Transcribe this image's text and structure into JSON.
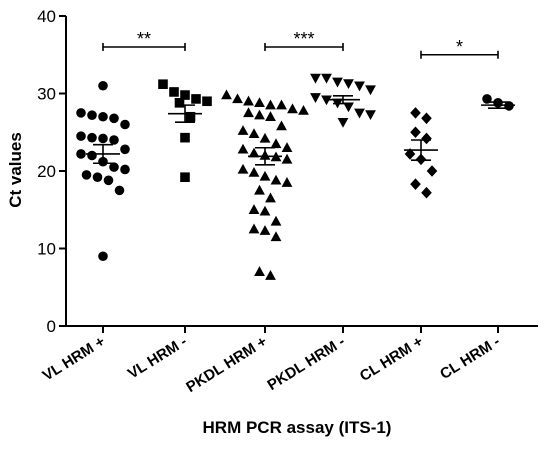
{
  "chart_data": {
    "type": "scatter",
    "title": "",
    "xlabel": "HRM PCR assay (ITS-1)",
    "ylabel": "Ct values",
    "ylim": [
      0,
      40
    ],
    "yticks": [
      0,
      10,
      20,
      30,
      40
    ],
    "grid": false,
    "categories": [
      "VL HRM +",
      "VL HRM -",
      "PKDL HRM +",
      "PKDL HRM -",
      "CL HRM +",
      "CL HRM -"
    ],
    "groups": [
      {
        "category": "VL HRM +",
        "marker": "circle",
        "mean": 22.2,
        "sem_low": 21.0,
        "sem_high": 23.4,
        "points": [
          31.0,
          27.5,
          27.2,
          27.0,
          26.8,
          26.0,
          24.5,
          24.3,
          24.2,
          24.0,
          22.8,
          22.2,
          22.0,
          21.2,
          20.5,
          20.2,
          19.5,
          19.2,
          18.8,
          17.5,
          9.0
        ]
      },
      {
        "category": "VL HRM -",
        "marker": "square",
        "mean": 27.4,
        "sem_low": 26.3,
        "sem_high": 28.5,
        "points": [
          31.2,
          30.2,
          29.8,
          29.3,
          29.0,
          28.8,
          27.0,
          24.3,
          19.2
        ]
      },
      {
        "category": "PKDL HRM +",
        "marker": "triangle-up",
        "mean": 21.9,
        "sem_low": 20.8,
        "sem_high": 23.0,
        "points": [
          29.8,
          29.3,
          29.0,
          28.8,
          28.5,
          28.5,
          28.0,
          27.8,
          27.5,
          27.2,
          27.0,
          25.8,
          25.2,
          24.8,
          24.2,
          23.5,
          23.0,
          22.8,
          22.3,
          22.0,
          21.8,
          21.5,
          20.2,
          19.8,
          19.3,
          18.8,
          18.5,
          17.5,
          16.5,
          15.0,
          14.8,
          13.5,
          12.5,
          12.3,
          11.5,
          7.0,
          6.5
        ]
      },
      {
        "category": "PKDL HRM -",
        "marker": "triangle-down",
        "mean": 29.2,
        "sem_low": 28.7,
        "sem_high": 29.7,
        "points": [
          32.0,
          32.0,
          31.5,
          31.3,
          31.0,
          30.5,
          29.5,
          29.2,
          28.8,
          28.3,
          27.5,
          27.3,
          26.3
        ]
      },
      {
        "category": "CL HRM +",
        "marker": "diamond",
        "mean": 22.7,
        "sem_low": 21.4,
        "sem_high": 24.0,
        "points": [
          27.5,
          26.8,
          25.0,
          24.2,
          22.2,
          21.5,
          20.0,
          18.3,
          17.2
        ]
      },
      {
        "category": "CL HRM -",
        "marker": "circle",
        "mean": 28.5,
        "sem_low": 28.1,
        "sem_high": 28.9,
        "points": [
          29.3,
          28.8,
          28.4
        ]
      }
    ],
    "significance": [
      {
        "from": "VL HRM +",
        "to": "VL HRM -",
        "label": "**",
        "y": 36
      },
      {
        "from": "PKDL HRM +",
        "to": "PKDL HRM -",
        "label": "***",
        "y": 36
      },
      {
        "from": "CL HRM +",
        "to": "CL HRM -",
        "label": "*",
        "y": 35
      }
    ]
  }
}
